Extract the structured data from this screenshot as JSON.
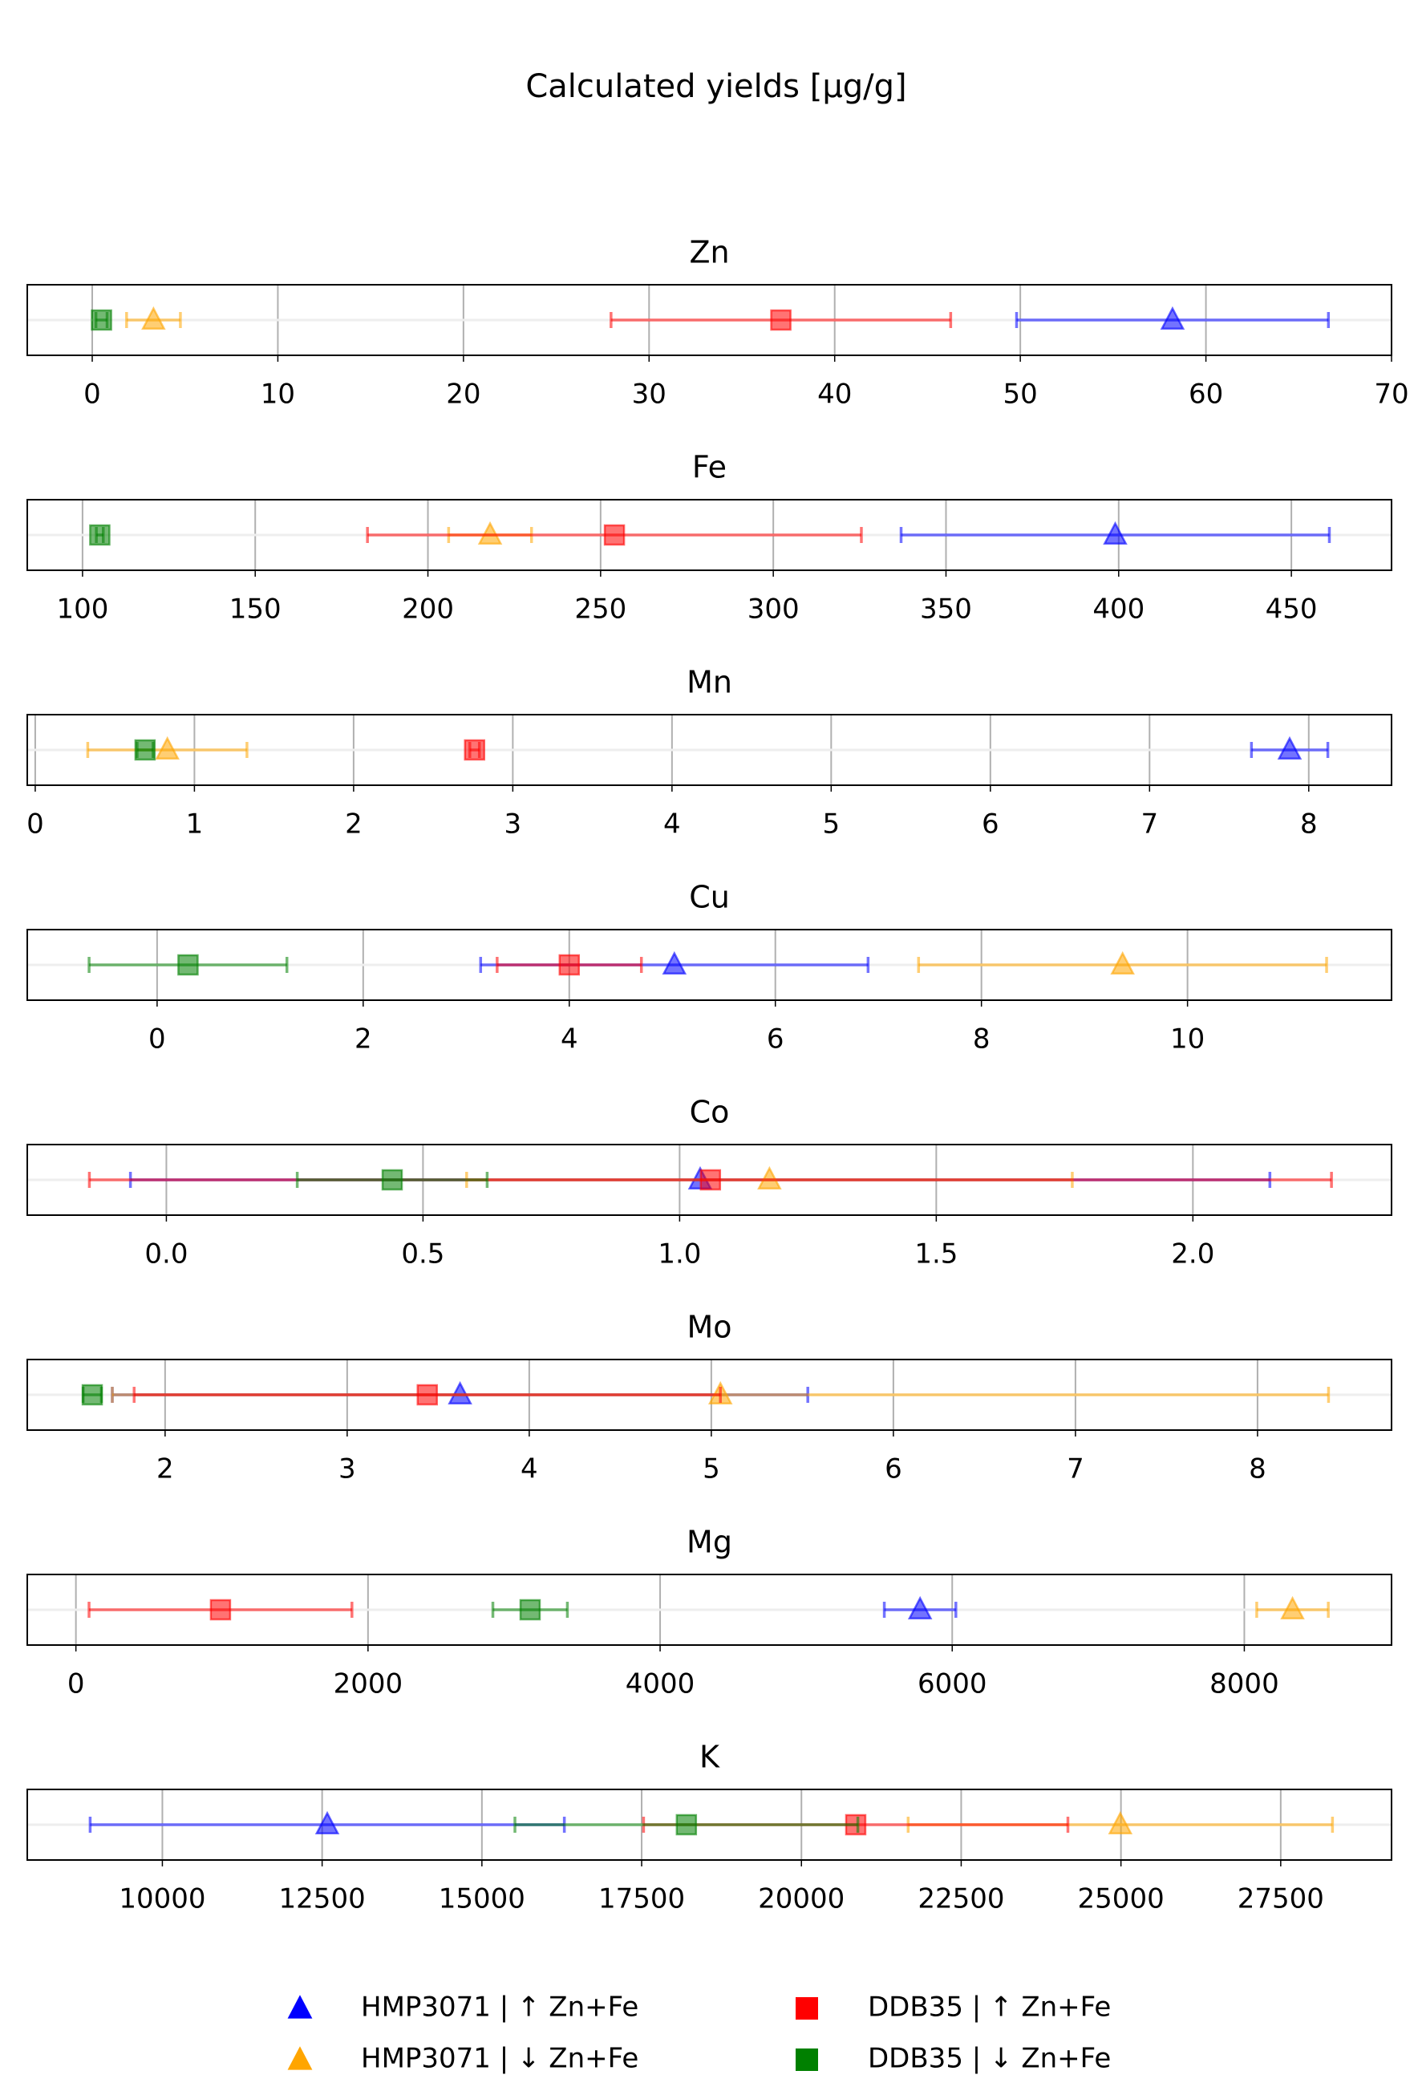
{
  "title": "Calculated yields [µg/g]",
  "chart_data": [
    {
      "type": "errorbar",
      "title": "Zn",
      "xlim": [
        -3.5,
        70
      ],
      "xticks": [
        0,
        10,
        20,
        30,
        40,
        50,
        60,
        70
      ],
      "grid": true,
      "series": [
        {
          "name": "HMP3071 | ↑ Zn+Fe",
          "color": "blue",
          "marker": "triangle",
          "values": [
            58.2
          ],
          "errors": [
            8.4
          ]
        },
        {
          "name": "HMP3071 | ↓ Zn+Fe",
          "color": "orange",
          "marker": "triangle",
          "values": [
            3.3
          ],
          "errors": [
            1.45
          ]
        },
        {
          "name": "DDB35 | ↑ Zn+Fe",
          "color": "red",
          "marker": "square",
          "values": [
            37.1
          ],
          "errors": [
            9.15
          ]
        },
        {
          "name": "DDB35 | ↓ Zn+Fe",
          "color": "green",
          "marker": "square",
          "values": [
            0.5
          ],
          "errors": [
            0.3
          ]
        }
      ]
    },
    {
      "type": "errorbar",
      "title": "Fe",
      "xlim": [
        84,
        479
      ],
      "xticks": [
        100,
        150,
        200,
        250,
        300,
        350,
        400,
        450
      ],
      "grid": true,
      "series": [
        {
          "name": "HMP3071 | ↑ Zn+Fe",
          "color": "blue",
          "marker": "triangle",
          "values": [
            399
          ],
          "errors": [
            62
          ]
        },
        {
          "name": "HMP3071 | ↓ Zn+Fe",
          "color": "orange",
          "marker": "triangle",
          "values": [
            218
          ],
          "errors": [
            12
          ]
        },
        {
          "name": "DDB35 | ↑ Zn+Fe",
          "color": "red",
          "marker": "square",
          "values": [
            254
          ],
          "errors": [
            71.5
          ]
        },
        {
          "name": "DDB35 | ↓ Zn+Fe",
          "color": "green",
          "marker": "square",
          "values": [
            105
          ],
          "errors": [
            1
          ]
        }
      ]
    },
    {
      "type": "errorbar",
      "title": "Mn",
      "xlim": [
        -0.05,
        8.52
      ],
      "xticks": [
        0,
        1,
        2,
        3,
        4,
        5,
        6,
        7,
        8
      ],
      "grid": true,
      "series": [
        {
          "name": "HMP3071 | ↑ Zn+Fe",
          "color": "blue",
          "marker": "triangle",
          "values": [
            7.88
          ],
          "errors": [
            0.24
          ]
        },
        {
          "name": "HMP3071 | ↓ Zn+Fe",
          "color": "orange",
          "marker": "triangle",
          "values": [
            0.83
          ],
          "errors": [
            0.5
          ]
        },
        {
          "name": "DDB35 | ↑ Zn+Fe",
          "color": "red",
          "marker": "square",
          "values": [
            2.76
          ],
          "errors": [
            0.03
          ]
        },
        {
          "name": "DDB35 | ↓ Zn+Fe",
          "color": "green",
          "marker": "square",
          "values": [
            0.69
          ],
          "errors": [
            0.05
          ]
        }
      ]
    },
    {
      "type": "errorbar",
      "title": "Cu",
      "xlim": [
        -1.26,
        11.98
      ],
      "xticks": [
        0,
        2,
        4,
        6,
        8,
        10
      ],
      "grid": true,
      "series": [
        {
          "name": "HMP3071 | ↑ Zn+Fe",
          "color": "blue",
          "marker": "triangle",
          "values": [
            5.02
          ],
          "errors": [
            1.88
          ]
        },
        {
          "name": "HMP3071 | ↓ Zn+Fe",
          "color": "orange",
          "marker": "triangle",
          "values": [
            9.37
          ],
          "errors": [
            1.98
          ]
        },
        {
          "name": "DDB35 | ↑ Zn+Fe",
          "color": "red",
          "marker": "square",
          "values": [
            4.0
          ],
          "errors": [
            0.7
          ]
        },
        {
          "name": "DDB35 | ↓ Zn+Fe",
          "color": "green",
          "marker": "square",
          "values": [
            0.3
          ],
          "errors": [
            0.96
          ]
        }
      ]
    },
    {
      "type": "errorbar",
      "title": "Co",
      "xlim": [
        -0.271,
        2.387
      ],
      "xticks": [
        {
          "value": 0,
          "label": "0.0"
        },
        0.5,
        {
          "value": 1,
          "label": "1.0"
        },
        1.5,
        {
          "value": 2,
          "label": "2.0"
        }
      ],
      "grid": true,
      "series": [
        {
          "name": "HMP3071 | ↑ Zn+Fe",
          "color": "blue",
          "marker": "triangle",
          "values": [
            1.04
          ],
          "errors": [
            1.11
          ]
        },
        {
          "name": "HMP3071 | ↓ Zn+Fe",
          "color": "orange",
          "marker": "triangle",
          "values": [
            1.175
          ],
          "errors": [
            0.59
          ]
        },
        {
          "name": "DDB35 | ↑ Zn+Fe",
          "color": "red",
          "marker": "square",
          "values": [
            1.06
          ],
          "errors": [
            1.21
          ]
        },
        {
          "name": "DDB35 | ↓ Zn+Fe",
          "color": "green",
          "marker": "square",
          "values": [
            0.44
          ],
          "errors": [
            0.185
          ]
        }
      ]
    },
    {
      "type": "errorbar",
      "title": "Mo",
      "xlim": [
        1.243,
        8.736
      ],
      "xticks": [
        2,
        3,
        4,
        5,
        6,
        7,
        8
      ],
      "grid": true,
      "series": [
        {
          "name": "HMP3071 | ↑ Zn+Fe",
          "color": "blue",
          "marker": "triangle",
          "values": [
            3.62
          ],
          "errors": [
            1.91
          ]
        },
        {
          "name": "HMP3071 | ↓ Zn+Fe",
          "color": "orange",
          "marker": "triangle",
          "values": [
            5.05
          ],
          "errors": [
            3.34
          ]
        },
        {
          "name": "DDB35 | ↑ Zn+Fe",
          "color": "red",
          "marker": "square",
          "values": [
            3.44
          ],
          "errors": [
            1.61
          ]
        },
        {
          "name": "DDB35 | ↓ Zn+Fe",
          "color": "green",
          "marker": "square",
          "values": [
            1.6
          ],
          "errors": [
            0.05
          ]
        }
      ]
    },
    {
      "type": "errorbar",
      "title": "Mg",
      "xlim": [
        -333,
        9008
      ],
      "xticks": [
        0,
        2000,
        4000,
        6000,
        8000
      ],
      "grid": true,
      "series": [
        {
          "name": "HMP3071 | ↑ Zn+Fe",
          "color": "blue",
          "marker": "triangle",
          "values": [
            5780
          ],
          "errors": [
            245
          ]
        },
        {
          "name": "HMP3071 | ↓ Zn+Fe",
          "color": "orange",
          "marker": "triangle",
          "values": [
            8330
          ],
          "errors": [
            245
          ]
        },
        {
          "name": "DDB35 | ↑ Zn+Fe",
          "color": "red",
          "marker": "square",
          "values": [
            990
          ],
          "errors": [
            900
          ]
        },
        {
          "name": "DDB35 | ↓ Zn+Fe",
          "color": "green",
          "marker": "square",
          "values": [
            3110
          ],
          "errors": [
            255
          ]
        }
      ]
    },
    {
      "type": "errorbar",
      "title": "K",
      "xlim": [
        7886,
        29234
      ],
      "xticks": [
        10000,
        12500,
        15000,
        17500,
        20000,
        22500,
        25000,
        27500
      ],
      "grid": true,
      "series": [
        {
          "name": "HMP3071 | ↑ Zn+Fe",
          "color": "blue",
          "marker": "triangle",
          "values": [
            12580
          ],
          "errors": [
            3710
          ]
        },
        {
          "name": "HMP3071 | ↓ Zn+Fe",
          "color": "orange",
          "marker": "triangle",
          "values": [
            24990
          ],
          "errors": [
            3320
          ]
        },
        {
          "name": "DDB35 | ↑ Zn+Fe",
          "color": "red",
          "marker": "square",
          "values": [
            20850
          ],
          "errors": [
            3320
          ]
        },
        {
          "name": "DDB35 | ↓ Zn+Fe",
          "color": "green",
          "marker": "square",
          "values": [
            18200
          ],
          "errors": [
            2683
          ]
        }
      ]
    }
  ]
}
